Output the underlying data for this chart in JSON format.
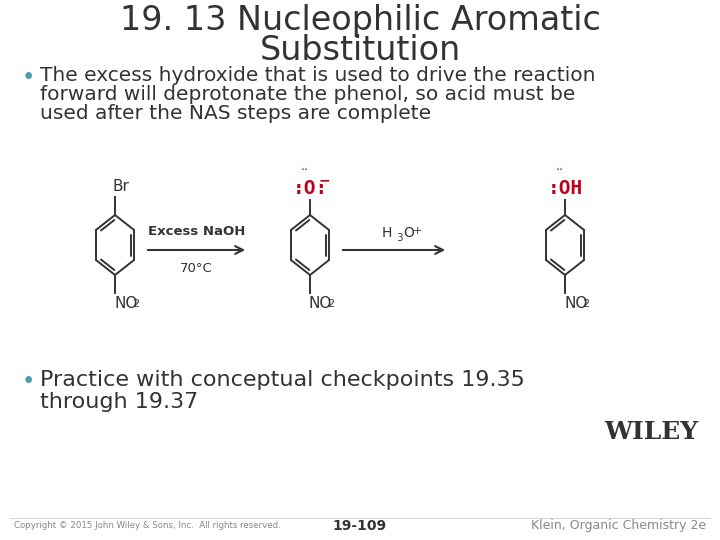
{
  "title_line1": "19. 13 Nucleophilic Aromatic",
  "title_line2": "Substitution",
  "title_fontsize": 24,
  "title_color": "#333333",
  "bullet1_line1": "The excess hydroxide that is used to drive the reaction",
  "bullet1_line2": "forward will deprotonate the phenol, so acid must be",
  "bullet1_line3": "used after the NAS steps are complete",
  "bullet2_line1": "Practice with conceptual checkpoints 19.35",
  "bullet2_line2": "through 19.37",
  "bullet_fontsize": 14.5,
  "bullet_color": "#333333",
  "reagent1a": "Excess NaOH",
  "reagent1b": "70°C",
  "reagent2": "H",
  "reagent2sub": "3",
  "reagent2sup": "+",
  "footer_left": "Copyright © 2015 John Wiley & Sons, Inc.  All rights reserved.",
  "footer_center": "19-109",
  "footer_right": "Klein, Organic Chemistry 2e",
  "wiley_text": "WILEY",
  "red_color": "#c0001a",
  "black_color": "#333333",
  "gray_color": "#777777"
}
